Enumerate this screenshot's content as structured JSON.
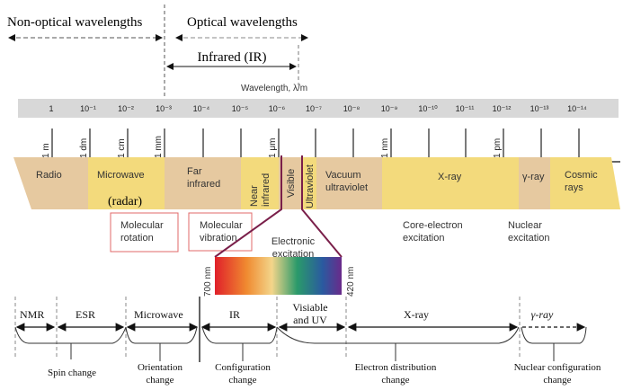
{
  "top": {
    "non_optical": "Non-optical wavelengths",
    "optical": "Optical wavelengths",
    "infrared": "Infrared (IR)",
    "axis_title": "Wavelength, λ/m"
  },
  "scale": {
    "powers": [
      "1",
      "10⁻¹",
      "10⁻²",
      "10⁻³",
      "10⁻⁴",
      "10⁻⁵",
      "10⁻⁶",
      "10⁻⁷",
      "10⁻⁸",
      "10⁻⁹",
      "10⁻¹⁰",
      "10⁻¹¹",
      "10⁻¹²",
      "10⁻¹³",
      "10⁻¹⁴"
    ],
    "units": [
      "1 m",
      "1 dm",
      "1 cm",
      "1 mm",
      "1 μm",
      "1 nm",
      "1 pm"
    ]
  },
  "bands": {
    "radio": "Radio",
    "microwave": "Microwave",
    "radar": "(radar)",
    "far_ir_1": "Far",
    "far_ir_2": "infrared",
    "near_ir_1": "Near",
    "near_ir_2": "infrared",
    "visible": "Visible",
    "ultraviolet": "Ultraviolet",
    "vuv_1": "Vacuum",
    "vuv_2": "ultraviolet",
    "xray": "X-ray",
    "gamma": "γ-ray",
    "cosmic_1": "Cosmic",
    "cosmic_2": "rays",
    "tan": "#e6c9a0",
    "yellow": "#f3da7c"
  },
  "effects": {
    "rot_1": "Molecular",
    "rot_2": "rotation",
    "vib_1": "Molecular",
    "vib_2": "vibration",
    "elec_1": "Electronic",
    "elec_2": "excitation",
    "core_1": "Core-electron",
    "core_2": "excitation",
    "nuc_1": "Nuclear",
    "nuc_2": "excitation",
    "nm700": "700 nm",
    "nm420": "420 nm"
  },
  "bottom": {
    "nmr": "NMR",
    "esr": "ESR",
    "microwave": "Microwave",
    "ir": "IR",
    "vis_1": "Visiable",
    "vis_2": "and UV",
    "xray": "X-ray",
    "gamma": "γ-ray",
    "spin": "Spin change",
    "orient_1": "Orientation",
    "orient_2": "change",
    "config_1": "Configuration",
    "config_2": "change",
    "elec_1": "Electron distribution",
    "elec_2": "change",
    "nuc_1": "Nuclear configuration",
    "nuc_2": "change"
  }
}
